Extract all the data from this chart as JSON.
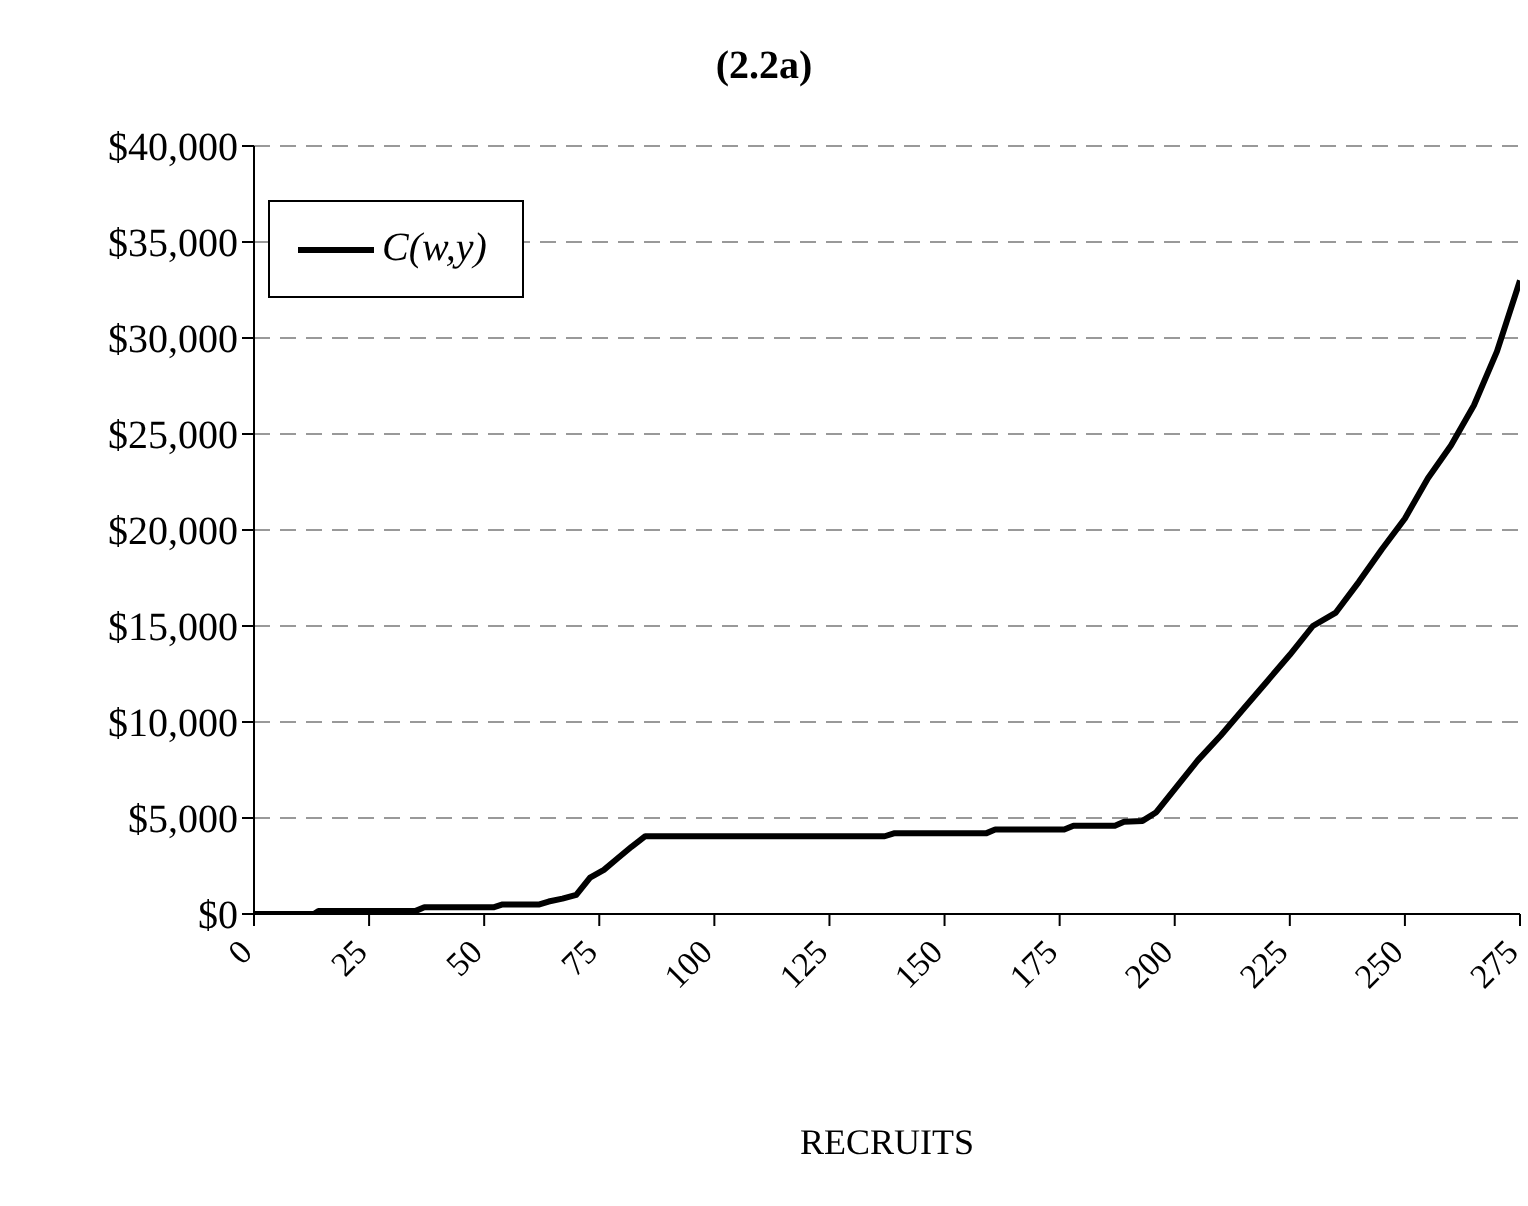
{
  "chart_data": {
    "type": "line",
    "title": "(2.2a)",
    "xlabel": "RECRUITS",
    "x": [
      0,
      13,
      14,
      35,
      37,
      52,
      54,
      62,
      64,
      67,
      70,
      73,
      76,
      79,
      82,
      85,
      100,
      125,
      137,
      139,
      159,
      161,
      176,
      178,
      187,
      189,
      193,
      196,
      200,
      205,
      210,
      215,
      220,
      225,
      230,
      235,
      240,
      245,
      250,
      255,
      260,
      265,
      270,
      275
    ],
    "series": [
      {
        "name": "C(w,y)",
        "color": "#000000",
        "values": [
          0,
          0,
          150,
          150,
          350,
          350,
          500,
          500,
          650,
          800,
          1000,
          1900,
          2300,
          2900,
          3500,
          4050,
          4050,
          4050,
          4050,
          4200,
          4200,
          4400,
          4400,
          4600,
          4600,
          4800,
          4850,
          5300,
          6500,
          8000,
          9300,
          10700,
          12100,
          13500,
          15000,
          15700,
          17300,
          19000,
          20600,
          22700,
          24400,
          26500,
          29300,
          33000
        ]
      }
    ],
    "xlim": [
      0,
      275
    ],
    "xticks": [
      0,
      25,
      50,
      75,
      100,
      125,
      150,
      175,
      200,
      225,
      250,
      275
    ],
    "ylim": [
      0,
      40000
    ],
    "yticks": [
      {
        "value": 0,
        "label": "$0"
      },
      {
        "value": 5000,
        "label": "$5,000"
      },
      {
        "value": 10000,
        "label": "$10,000"
      },
      {
        "value": 15000,
        "label": "$15,000"
      },
      {
        "value": 20000,
        "label": "$20,000"
      },
      {
        "value": 25000,
        "label": "$25,000"
      },
      {
        "value": 30000,
        "label": "$30,000"
      },
      {
        "value": 35000,
        "label": "$35,000"
      },
      {
        "value": 40000,
        "label": "$40,000"
      }
    ],
    "grid": "y",
    "legend": "top left",
    "marker": "none",
    "line_style": "solid"
  }
}
